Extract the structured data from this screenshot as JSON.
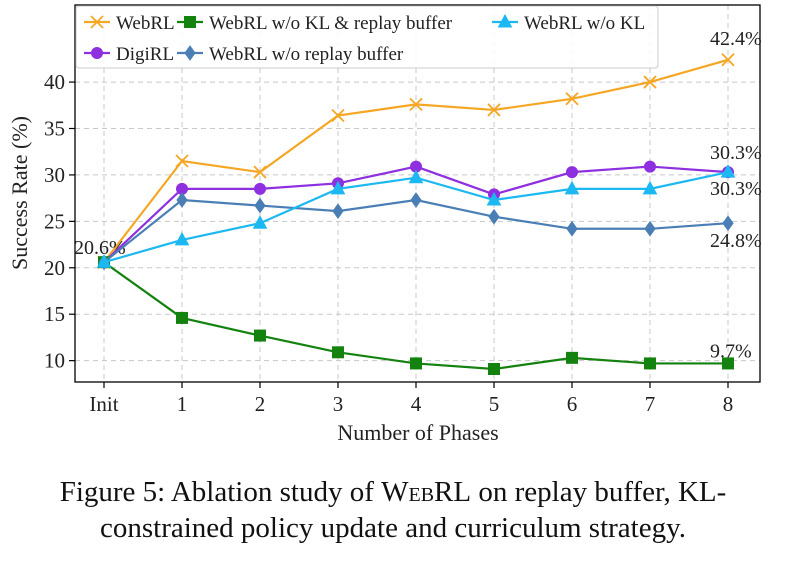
{
  "chart_data": {
    "type": "line",
    "xlabel": "Number of Phases",
    "ylabel": "Success Rate (%)",
    "categories": [
      "Init",
      "1",
      "2",
      "3",
      "4",
      "5",
      "6",
      "7",
      "8"
    ],
    "ylim": [
      7.7,
      48.3
    ],
    "yticks": [
      10,
      15,
      20,
      25,
      30,
      35,
      40
    ],
    "grid": true,
    "legend_position": "upper left",
    "legend_columns": 3,
    "series": [
      {
        "name": "WebRL",
        "color": "#f5a623",
        "marker": "x",
        "values": [
          20.6,
          31.5,
          30.3,
          36.4,
          37.6,
          37.0,
          38.2,
          40.0,
          42.4
        ],
        "value_labels": [
          "20.6%",
          null,
          null,
          null,
          null,
          null,
          null,
          null,
          "42.4%"
        ]
      },
      {
        "name": "DigiRL",
        "color": "#8e2fe0",
        "marker": "circle",
        "values": [
          20.6,
          28.5,
          28.5,
          29.1,
          30.9,
          27.9,
          30.3,
          30.9,
          30.3
        ],
        "value_labels": [
          null,
          null,
          null,
          null,
          null,
          null,
          null,
          null,
          "30.3%"
        ]
      },
      {
        "name": "WebRL w/o KL & replay buffer",
        "color": "#14820f",
        "marker": "square",
        "values": [
          20.6,
          14.6,
          12.7,
          10.9,
          9.7,
          9.1,
          10.3,
          9.7,
          9.7
        ],
        "value_labels": [
          null,
          null,
          null,
          null,
          null,
          null,
          null,
          null,
          "9.7%"
        ]
      },
      {
        "name": "WebRL w/o replay buffer",
        "color": "#4a7fb5",
        "marker": "diamond",
        "values": [
          20.6,
          27.3,
          26.7,
          26.1,
          27.3,
          25.5,
          24.2,
          24.2,
          24.8
        ],
        "value_labels": [
          null,
          null,
          null,
          null,
          null,
          null,
          null,
          null,
          "24.8%"
        ]
      },
      {
        "name": "WebRL w/o KL",
        "color": "#1cb8f2",
        "marker": "triangle",
        "values": [
          20.6,
          23.0,
          24.8,
          28.5,
          29.7,
          27.3,
          28.5,
          28.5,
          30.3
        ],
        "value_labels": [
          null,
          null,
          null,
          null,
          null,
          null,
          null,
          null,
          "30.3%"
        ]
      }
    ]
  },
  "caption": [
    "Figure 5: Ablation study of ",
    "WebRL",
    " on replay buffer, KL-constrained policy update and curriculum strategy."
  ]
}
